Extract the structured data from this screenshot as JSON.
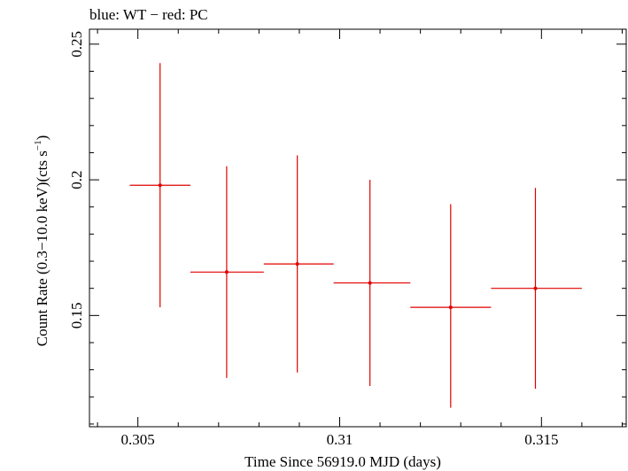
{
  "chart_data": {
    "type": "scatter",
    "title": "blue: WT − red: PC",
    "xlabel": "Time Since 56919.0 MJD (days)",
    "ylabel_main": "Count Rate (0.3−10.0 keV)(cts s",
    "ylabel_sup": "−1",
    "ylabel_close": ")",
    "xlim": [
      0.3038,
      0.3171
    ],
    "ylim": [
      0.109,
      0.2555
    ],
    "x_ticks": [
      {
        "value": 0.305,
        "label": "0.305"
      },
      {
        "value": 0.31,
        "label": "0.31"
      },
      {
        "value": 0.315,
        "label": "0.315"
      }
    ],
    "y_ticks": [
      {
        "value": 0.15,
        "label": "0.15"
      },
      {
        "value": 0.2,
        "label": "0.2"
      },
      {
        "value": 0.25,
        "label": "0.25"
      }
    ],
    "series": [
      {
        "name": "PC",
        "color": "#e00000",
        "points": [
          {
            "x": 0.30555,
            "xlo": 0.3048,
            "xhi": 0.3063,
            "y": 0.198,
            "ylo": 0.153,
            "yhi": 0.243
          },
          {
            "x": 0.3072,
            "xlo": 0.3063,
            "xhi": 0.30812,
            "y": 0.166,
            "ylo": 0.127,
            "yhi": 0.205
          },
          {
            "x": 0.30895,
            "xlo": 0.30812,
            "xhi": 0.30985,
            "y": 0.169,
            "ylo": 0.129,
            "yhi": 0.209
          },
          {
            "x": 0.31075,
            "xlo": 0.30985,
            "xhi": 0.31175,
            "y": 0.162,
            "ylo": 0.124,
            "yhi": 0.2
          },
          {
            "x": 0.31275,
            "xlo": 0.31175,
            "xhi": 0.31375,
            "y": 0.153,
            "ylo": 0.116,
            "yhi": 0.191
          },
          {
            "x": 0.31485,
            "xlo": 0.31375,
            "xhi": 0.316,
            "y": 0.16,
            "ylo": 0.123,
            "yhi": 0.197
          }
        ]
      }
    ]
  }
}
